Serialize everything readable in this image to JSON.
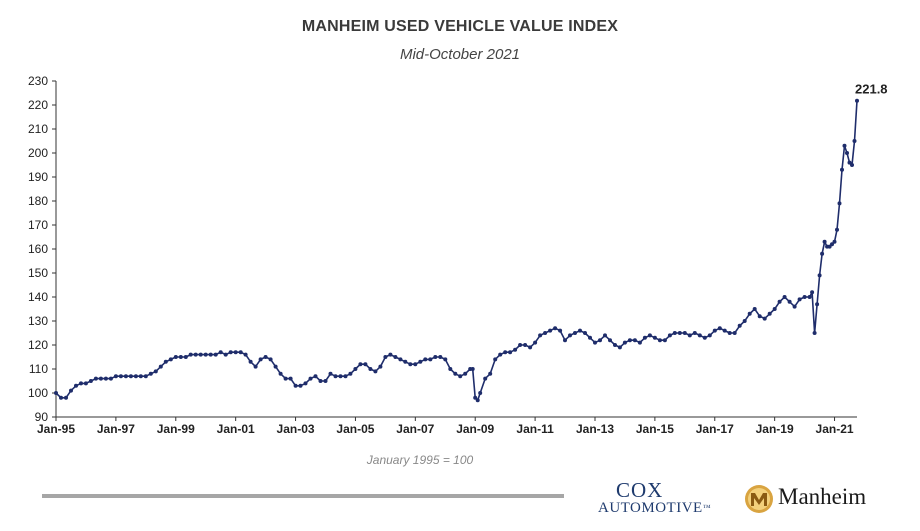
{
  "chart_data": {
    "type": "line",
    "title": "MANHEIM USED VEHICLE VALUE INDEX",
    "subtitle": "Mid-October 2021",
    "xlabel": "",
    "ylabel": "",
    "note": "January 1995 = 100",
    "ylim": [
      90,
      230
    ],
    "yticks": [
      90,
      100,
      110,
      120,
      130,
      140,
      150,
      160,
      170,
      180,
      190,
      200,
      210,
      220,
      230
    ],
    "xticks": [
      "Jan-95",
      "Jan-97",
      "Jan-99",
      "Jan-01",
      "Jan-03",
      "Jan-05",
      "Jan-07",
      "Jan-09",
      "Jan-11",
      "Jan-13",
      "Jan-15",
      "Jan-17",
      "Jan-19",
      "Jan-21"
    ],
    "xlim": [
      "1995-01",
      "2021-10"
    ],
    "grid": false,
    "last_value_label": "221.8",
    "series": [
      {
        "color": "#1f2d6b",
        "points": [
          [
            "1995-01",
            100
          ],
          [
            "1995-03",
            98
          ],
          [
            "1995-05",
            98
          ],
          [
            "1995-07",
            101
          ],
          [
            "1995-09",
            103
          ],
          [
            "1995-11",
            104
          ],
          [
            "1996-01",
            104
          ],
          [
            "1996-03",
            105
          ],
          [
            "1996-05",
            106
          ],
          [
            "1996-07",
            106
          ],
          [
            "1996-09",
            106
          ],
          [
            "1996-11",
            106
          ],
          [
            "1997-01",
            107
          ],
          [
            "1997-03",
            107
          ],
          [
            "1997-05",
            107
          ],
          [
            "1997-07",
            107
          ],
          [
            "1997-09",
            107
          ],
          [
            "1997-11",
            107
          ],
          [
            "1998-01",
            107
          ],
          [
            "1998-03",
            108
          ],
          [
            "1998-05",
            109
          ],
          [
            "1998-07",
            111
          ],
          [
            "1998-09",
            113
          ],
          [
            "1998-11",
            114
          ],
          [
            "1999-01",
            115
          ],
          [
            "1999-03",
            115
          ],
          [
            "1999-05",
            115
          ],
          [
            "1999-07",
            116
          ],
          [
            "1999-09",
            116
          ],
          [
            "1999-11",
            116
          ],
          [
            "2000-01",
            116
          ],
          [
            "2000-03",
            116
          ],
          [
            "2000-05",
            116
          ],
          [
            "2000-07",
            117
          ],
          [
            "2000-09",
            116
          ],
          [
            "2000-11",
            117
          ],
          [
            "2001-01",
            117
          ],
          [
            "2001-03",
            117
          ],
          [
            "2001-05",
            116
          ],
          [
            "2001-07",
            113
          ],
          [
            "2001-09",
            111
          ],
          [
            "2001-11",
            114
          ],
          [
            "2002-01",
            115
          ],
          [
            "2002-03",
            114
          ],
          [
            "2002-05",
            111
          ],
          [
            "2002-07",
            108
          ],
          [
            "2002-09",
            106
          ],
          [
            "2002-11",
            106
          ],
          [
            "2003-01",
            103
          ],
          [
            "2003-03",
            103
          ],
          [
            "2003-05",
            104
          ],
          [
            "2003-07",
            106
          ],
          [
            "2003-09",
            107
          ],
          [
            "2003-11",
            105
          ],
          [
            "2004-01",
            105
          ],
          [
            "2004-03",
            108
          ],
          [
            "2004-05",
            107
          ],
          [
            "2004-07",
            107
          ],
          [
            "2004-09",
            107
          ],
          [
            "2004-11",
            108
          ],
          [
            "2005-01",
            110
          ],
          [
            "2005-03",
            112
          ],
          [
            "2005-05",
            112
          ],
          [
            "2005-07",
            110
          ],
          [
            "2005-09",
            109
          ],
          [
            "2005-11",
            111
          ],
          [
            "2006-01",
            115
          ],
          [
            "2006-03",
            116
          ],
          [
            "2006-05",
            115
          ],
          [
            "2006-07",
            114
          ],
          [
            "2006-09",
            113
          ],
          [
            "2006-11",
            112
          ],
          [
            "2007-01",
            112
          ],
          [
            "2007-03",
            113
          ],
          [
            "2007-05",
            114
          ],
          [
            "2007-07",
            114
          ],
          [
            "2007-09",
            115
          ],
          [
            "2007-11",
            115
          ],
          [
            "2008-01",
            114
          ],
          [
            "2008-03",
            110
          ],
          [
            "2008-05",
            108
          ],
          [
            "2008-07",
            107
          ],
          [
            "2008-09",
            108
          ],
          [
            "2008-11",
            110
          ],
          [
            "2008-12",
            110
          ],
          [
            "2009-01",
            98
          ],
          [
            "2009-02",
            97
          ],
          [
            "2009-03",
            100
          ],
          [
            "2009-05",
            106
          ],
          [
            "2009-07",
            108
          ],
          [
            "2009-09",
            114
          ],
          [
            "2009-11",
            116
          ],
          [
            "2010-01",
            117
          ],
          [
            "2010-03",
            117
          ],
          [
            "2010-05",
            118
          ],
          [
            "2010-07",
            120
          ],
          [
            "2010-09",
            120
          ],
          [
            "2010-11",
            119
          ],
          [
            "2011-01",
            121
          ],
          [
            "2011-03",
            124
          ],
          [
            "2011-05",
            125
          ],
          [
            "2011-07",
            126
          ],
          [
            "2011-09",
            127
          ],
          [
            "2011-11",
            126
          ],
          [
            "2012-01",
            122
          ],
          [
            "2012-03",
            124
          ],
          [
            "2012-05",
            125
          ],
          [
            "2012-07",
            126
          ],
          [
            "2012-09",
            125
          ],
          [
            "2012-11",
            123
          ],
          [
            "2013-01",
            121
          ],
          [
            "2013-03",
            122
          ],
          [
            "2013-05",
            124
          ],
          [
            "2013-07",
            122
          ],
          [
            "2013-09",
            120
          ],
          [
            "2013-11",
            119
          ],
          [
            "2014-01",
            121
          ],
          [
            "2014-03",
            122
          ],
          [
            "2014-05",
            122
          ],
          [
            "2014-07",
            121
          ],
          [
            "2014-09",
            123
          ],
          [
            "2014-11",
            124
          ],
          [
            "2015-01",
            123
          ],
          [
            "2015-03",
            122
          ],
          [
            "2015-05",
            122
          ],
          [
            "2015-07",
            124
          ],
          [
            "2015-09",
            125
          ],
          [
            "2015-11",
            125
          ],
          [
            "2016-01",
            125
          ],
          [
            "2016-03",
            124
          ],
          [
            "2016-05",
            125
          ],
          [
            "2016-07",
            124
          ],
          [
            "2016-09",
            123
          ],
          [
            "2016-11",
            124
          ],
          [
            "2017-01",
            126
          ],
          [
            "2017-03",
            127
          ],
          [
            "2017-05",
            126
          ],
          [
            "2017-07",
            125
          ],
          [
            "2017-09",
            125
          ],
          [
            "2017-11",
            128
          ],
          [
            "2018-01",
            130
          ],
          [
            "2018-03",
            133
          ],
          [
            "2018-05",
            135
          ],
          [
            "2018-07",
            132
          ],
          [
            "2018-09",
            131
          ],
          [
            "2018-11",
            133
          ],
          [
            "2019-01",
            135
          ],
          [
            "2019-03",
            138
          ],
          [
            "2019-05",
            140
          ],
          [
            "2019-07",
            138
          ],
          [
            "2019-09",
            136
          ],
          [
            "2019-11",
            139
          ],
          [
            "2020-01",
            140
          ],
          [
            "2020-03",
            140
          ],
          [
            "2020-04",
            142
          ],
          [
            "2020-05",
            125
          ],
          [
            "2020-06",
            137
          ],
          [
            "2020-07",
            149
          ],
          [
            "2020-08",
            158
          ],
          [
            "2020-09",
            163
          ],
          [
            "2020-10",
            161
          ],
          [
            "2020-11",
            161
          ],
          [
            "2020-12",
            162
          ],
          [
            "2021-01",
            163
          ],
          [
            "2021-02",
            168
          ],
          [
            "2021-03",
            179
          ],
          [
            "2021-04",
            193
          ],
          [
            "2021-05",
            203
          ],
          [
            "2021-06",
            200
          ],
          [
            "2021-07",
            196
          ],
          [
            "2021-08",
            195
          ],
          [
            "2021-09",
            205
          ],
          [
            "2021-10",
            221.8
          ]
        ]
      }
    ]
  },
  "footer": {
    "cox_line1": "COX",
    "cox_line2": "AUTOMOTIVE",
    "cox_tm": "™",
    "manheim": "Manheim"
  }
}
